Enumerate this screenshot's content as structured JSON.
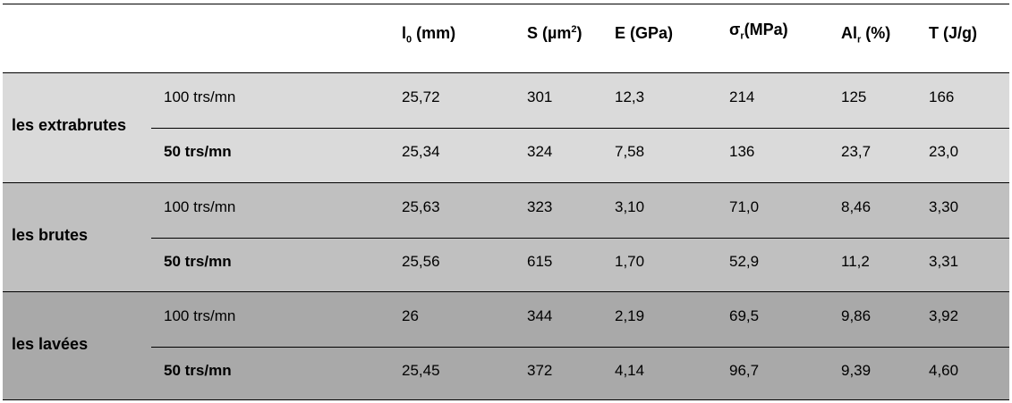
{
  "columns": {
    "l0": {
      "main": "l",
      "sub": "0",
      "rest": " (mm)"
    },
    "s": {
      "main": "S (µm",
      "sup": "2",
      "rest": ")"
    },
    "e": {
      "main": "E (GPa)"
    },
    "sigma": {
      "main": "σ",
      "sub": "r",
      "rest": "(MPa)"
    },
    "al": {
      "main": "Al",
      "sub": "r",
      "rest": " (%)"
    },
    "t": {
      "main": "T (J/g)"
    }
  },
  "groups": [
    {
      "label": "les extrabrutes",
      "rows": [
        {
          "speed": "100 trs/mn",
          "l0": "25,72",
          "s": "301",
          "e": "12,3",
          "sigma": "214",
          "al": "125",
          "t": "166"
        },
        {
          "speed": "50 trs/mn",
          "l0": "25,34",
          "s": "324",
          "e": "7,58",
          "sigma": "136",
          "al": "23,7",
          "t": "23,0"
        }
      ]
    },
    {
      "label": "les brutes",
      "rows": [
        {
          "speed": "100 trs/mn",
          "l0": "25,63",
          "s": "323",
          "e": "3,10",
          "sigma": "71,0",
          "al": "8,46",
          "t": "3,30"
        },
        {
          "speed": "50 trs/mn",
          "l0": "25,56",
          "s": "615",
          "e": "1,70",
          "sigma": "52,9",
          "al": "11,2",
          "t": "3,31"
        }
      ]
    },
    {
      "label": "les lavées",
      "rows": [
        {
          "speed": "100 trs/mn",
          "l0": "26",
          "s": "344",
          "e": "2,19",
          "sigma": "69,5",
          "al": "9,86",
          "t": "3,92"
        },
        {
          "speed": "50 trs/mn",
          "l0": "25,45",
          "s": "372",
          "e": "4,14",
          "sigma": "96,7",
          "al": "9,39",
          "t": "4,60"
        }
      ]
    }
  ],
  "colors": {
    "group1_bg": "#dadada",
    "group2_bg": "#c0c0c0",
    "group3_bg": "#a9a9a9"
  }
}
